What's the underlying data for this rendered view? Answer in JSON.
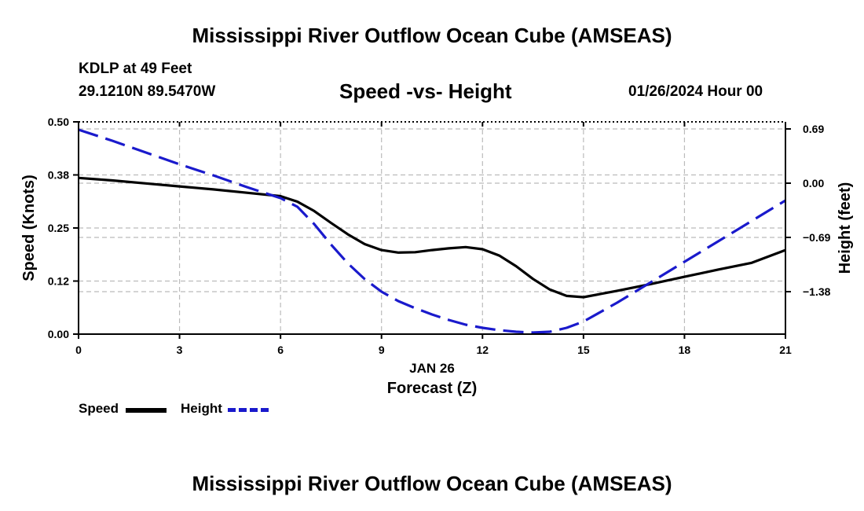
{
  "header": {
    "title": "Mississippi River Outflow Ocean Cube (AMSEAS)",
    "station": "KDLP at 49 Feet",
    "coordinates": "29.1210N  89.5470W",
    "subtitle": "Speed -vs- Height",
    "datetime": "01/26/2024 Hour 00"
  },
  "footer": {
    "title": "Mississippi River Outflow Ocean Cube (AMSEAS)"
  },
  "legend": {
    "speed_label": "Speed",
    "height_label": "Height"
  },
  "colors": {
    "speed": "#000000",
    "height": "#1a1acc",
    "grid": "#bbbbbb"
  },
  "chart_data": {
    "type": "line",
    "title": "Speed -vs- Height",
    "xlabel": "Forecast (Z)",
    "xlabel_date": "JAN 26",
    "ylabel_left": "Speed (Knots)",
    "ylabel_right": "Height (feet)",
    "xlim": [
      0,
      21
    ],
    "ylim_left": [
      0.0,
      0.5
    ],
    "ylim_right": [
      -1.92,
      0.78
    ],
    "x_ticks": [
      0,
      3,
      6,
      9,
      12,
      15,
      18,
      21
    ],
    "x_tick_labels": [
      "0",
      "3",
      "6",
      "9",
      "12",
      "15",
      "18",
      "21"
    ],
    "y_left_ticks": [
      0.0,
      0.125,
      0.25,
      0.375,
      0.5
    ],
    "y_left_tick_labels": [
      "0.00",
      "0.12",
      "0.25",
      "0.38",
      "0.50"
    ],
    "y_right_ticks": [
      0.69,
      0.0,
      -0.69,
      -1.38
    ],
    "y_right_tick_labels": [
      "0.69",
      "0.00",
      "−0.69",
      "−1.38"
    ],
    "grid": true,
    "series": [
      {
        "name": "Speed",
        "axis": "left",
        "style": "solid",
        "x": [
          0,
          1,
          2,
          3,
          4,
          5,
          6,
          6.5,
          7,
          7.5,
          8,
          8.5,
          9,
          9.5,
          10,
          10.5,
          11,
          11.5,
          12,
          12.5,
          13,
          13.5,
          14,
          14.5,
          15,
          16,
          17,
          18,
          19,
          20,
          21
        ],
        "values": [
          0.368,
          0.362,
          0.355,
          0.348,
          0.341,
          0.333,
          0.325,
          0.312,
          0.29,
          0.262,
          0.235,
          0.212,
          0.198,
          0.192,
          0.193,
          0.198,
          0.202,
          0.205,
          0.2,
          0.185,
          0.16,
          0.13,
          0.105,
          0.09,
          0.087,
          0.102,
          0.118,
          0.135,
          0.152,
          0.168,
          0.198
        ]
      },
      {
        "name": "Height",
        "axis": "right",
        "style": "dashed",
        "x": [
          0,
          1,
          2,
          3,
          4,
          5,
          6,
          6.5,
          7,
          7.5,
          8,
          8.5,
          9,
          9.5,
          10,
          10.5,
          11,
          11.5,
          12,
          12.5,
          13,
          13.5,
          14,
          14.5,
          15,
          16,
          17,
          18,
          19,
          20,
          21
        ],
        "values": [
          0.68,
          0.54,
          0.39,
          0.24,
          0.1,
          -0.05,
          -0.19,
          -0.3,
          -0.52,
          -0.78,
          -1.02,
          -1.22,
          -1.38,
          -1.5,
          -1.59,
          -1.67,
          -1.74,
          -1.8,
          -1.84,
          -1.87,
          -1.89,
          -1.9,
          -1.89,
          -1.84,
          -1.76,
          -1.52,
          -1.26,
          -1.0,
          -0.74,
          -0.48,
          -0.22
        ]
      }
    ]
  }
}
